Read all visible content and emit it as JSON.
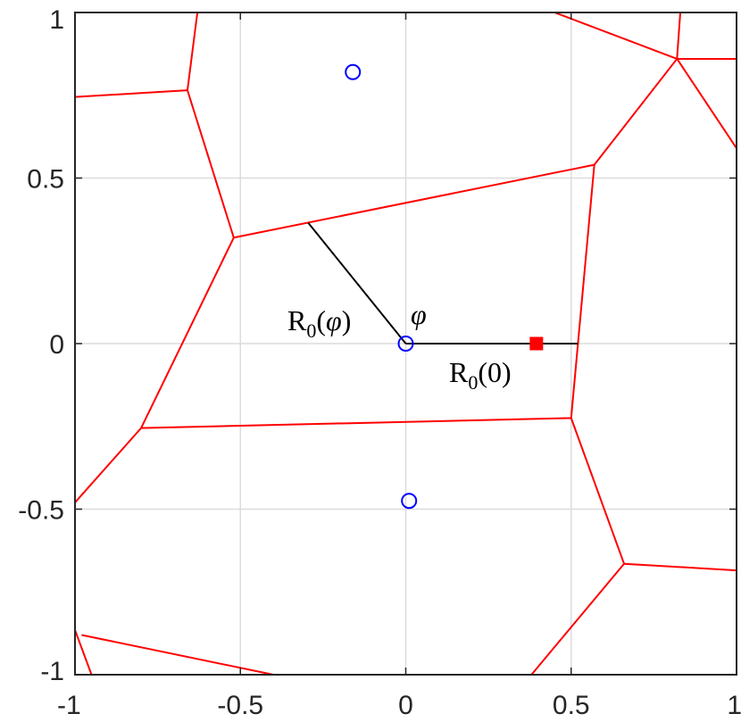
{
  "chart_data": {
    "type": "scatter",
    "title": "",
    "xlabel": "",
    "ylabel": "",
    "xlim": [
      -1,
      1
    ],
    "ylim": [
      -1,
      1
    ],
    "grid": true,
    "xticks": [
      -1,
      -0.5,
      0,
      0.5,
      1
    ],
    "yticks": [
      -1,
      -0.5,
      0,
      0.5,
      1
    ],
    "xtick_labels": [
      "-1",
      "-0.5",
      "0",
      "0.5",
      "1"
    ],
    "ytick_labels": [
      "-1",
      "-0.5",
      "0",
      "0.5",
      "1"
    ],
    "colors": {
      "edges": "#ff0000",
      "sites": "#0000ff",
      "square": "#ff0000",
      "rays": "#000000",
      "grid": "#dcdcdc",
      "axes": "#262626"
    },
    "voronoi_edges": [
      [
        [
          -1.0,
          0.745
        ],
        [
          -0.66,
          0.765
        ]
      ],
      [
        [
          -0.66,
          0.765
        ],
        [
          -0.63,
          1.0
        ]
      ],
      [
        [
          -0.66,
          0.765
        ],
        [
          -0.52,
          0.32
        ]
      ],
      [
        [
          -0.52,
          0.32
        ],
        [
          0.57,
          0.54
        ]
      ],
      [
        [
          -0.52,
          0.32
        ],
        [
          -0.8,
          -0.255
        ]
      ],
      [
        [
          -0.8,
          -0.255
        ],
        [
          0.5,
          -0.225
        ]
      ],
      [
        [
          -0.8,
          -0.255
        ],
        [
          -1.0,
          -0.48
        ]
      ],
      [
        [
          0.57,
          0.54
        ],
        [
          0.82,
          0.86
        ]
      ],
      [
        [
          0.57,
          0.54
        ],
        [
          0.5,
          -0.225
        ]
      ],
      [
        [
          0.5,
          -0.225
        ],
        [
          0.66,
          -0.665
        ]
      ],
      [
        [
          0.66,
          -0.665
        ],
        [
          1.0,
          -0.685
        ]
      ],
      [
        [
          0.66,
          -0.665
        ],
        [
          0.38,
          -1.0
        ]
      ],
      [
        [
          0.82,
          0.86
        ],
        [
          1.0,
          0.86
        ]
      ],
      [
        [
          0.82,
          0.86
        ],
        [
          1.0,
          0.59
        ]
      ],
      [
        [
          0.82,
          0.86
        ],
        [
          0.83,
          1.0
        ]
      ],
      [
        [
          0.82,
          0.86
        ],
        [
          0.45,
          1.0
        ]
      ],
      [
        [
          -1.0,
          -0.865
        ],
        [
          -0.95,
          -1.0
        ]
      ],
      [
        [
          -0.98,
          -0.88
        ],
        [
          -0.4,
          -1.0
        ]
      ]
    ],
    "sites": [
      {
        "x": -0.16,
        "y": 0.82
      },
      {
        "x": 0.0,
        "y": 0.0
      },
      {
        "x": 0.01,
        "y": -0.475
      }
    ],
    "square_marker": {
      "x": 0.395,
      "y": 0.0
    },
    "rays": [
      [
        [
          0.0,
          0.0
        ],
        [
          0.52,
          0.0
        ]
      ],
      [
        [
          0.0,
          0.0
        ],
        [
          -0.295,
          0.365
        ]
      ]
    ],
    "annotations": {
      "r0_phi": "R0(φ)",
      "phi": "φ",
      "r0_zero": "R0(0)"
    }
  }
}
